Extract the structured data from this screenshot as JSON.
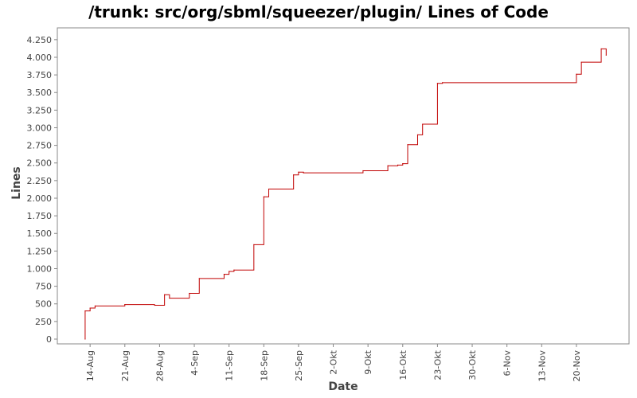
{
  "chart_data": {
    "type": "line",
    "title": "/trunk: src/org/sbml/squeezer/plugin/ Lines of Code",
    "xlabel": "Date",
    "ylabel": "Lines",
    "x_axis": {
      "type": "date",
      "range": [
        "2008-08-09",
        "2008-11-29"
      ],
      "tick_dates": [
        "2008-08-14",
        "2008-08-21",
        "2008-08-28",
        "2008-09-04",
        "2008-09-11",
        "2008-09-18",
        "2008-09-25",
        "2008-10-02",
        "2008-10-09",
        "2008-10-16",
        "2008-10-23",
        "2008-10-30",
        "2008-11-06",
        "2008-11-13",
        "2008-11-20"
      ],
      "tick_labels": [
        "14-Aug",
        "21-Aug",
        "28-Aug",
        "4-Sep",
        "11-Sep",
        "18-Sep",
        "25-Sep",
        "2-Okt",
        "9-Okt",
        "16-Okt",
        "23-Okt",
        "30-Okt",
        "6-Nov",
        "13-Nov",
        "20-Nov"
      ]
    },
    "y_axis": {
      "range": [
        0,
        4350
      ],
      "ticks": [
        0,
        250,
        500,
        750,
        1000,
        1250,
        1500,
        1750,
        2000,
        2250,
        2500,
        2750,
        3000,
        3250,
        3500,
        3750,
        4000,
        4250
      ],
      "tick_labels": [
        "0",
        "250",
        "500",
        "750",
        "1.000",
        "1.250",
        "1.500",
        "1.750",
        "2.000",
        "2.250",
        "2.500",
        "2.750",
        "3.000",
        "3.250",
        "3.500",
        "3.750",
        "4.000",
        "4.250"
      ]
    },
    "grid": false,
    "line_style": "step",
    "color": "#c00000",
    "points": [
      {
        "x": "2008-08-13",
        "y": 0
      },
      {
        "x": "2008-08-13",
        "y": 400
      },
      {
        "x": "2008-08-14",
        "y": 440
      },
      {
        "x": "2008-08-15",
        "y": 470
      },
      {
        "x": "2008-08-21",
        "y": 490
      },
      {
        "x": "2008-08-27",
        "y": 480
      },
      {
        "x": "2008-08-29",
        "y": 630
      },
      {
        "x": "2008-08-30",
        "y": 580
      },
      {
        "x": "2008-09-03",
        "y": 650
      },
      {
        "x": "2008-09-05",
        "y": 860
      },
      {
        "x": "2008-09-10",
        "y": 920
      },
      {
        "x": "2008-09-11",
        "y": 960
      },
      {
        "x": "2008-09-12",
        "y": 980
      },
      {
        "x": "2008-09-16",
        "y": 1340
      },
      {
        "x": "2008-09-18",
        "y": 2020
      },
      {
        "x": "2008-09-19",
        "y": 2130
      },
      {
        "x": "2008-09-24",
        "y": 2330
      },
      {
        "x": "2008-09-25",
        "y": 2370
      },
      {
        "x": "2008-09-26",
        "y": 2360
      },
      {
        "x": "2008-10-08",
        "y": 2390
      },
      {
        "x": "2008-10-13",
        "y": 2460
      },
      {
        "x": "2008-10-15",
        "y": 2470
      },
      {
        "x": "2008-10-16",
        "y": 2490
      },
      {
        "x": "2008-10-17",
        "y": 2760
      },
      {
        "x": "2008-10-19",
        "y": 2900
      },
      {
        "x": "2008-10-20",
        "y": 3050
      },
      {
        "x": "2008-10-23",
        "y": 3630
      },
      {
        "x": "2008-10-24",
        "y": 3640
      },
      {
        "x": "2008-11-20",
        "y": 3760
      },
      {
        "x": "2008-11-21",
        "y": 3930
      },
      {
        "x": "2008-11-25",
        "y": 4120
      },
      {
        "x": "2008-11-26",
        "y": 4030
      }
    ]
  }
}
